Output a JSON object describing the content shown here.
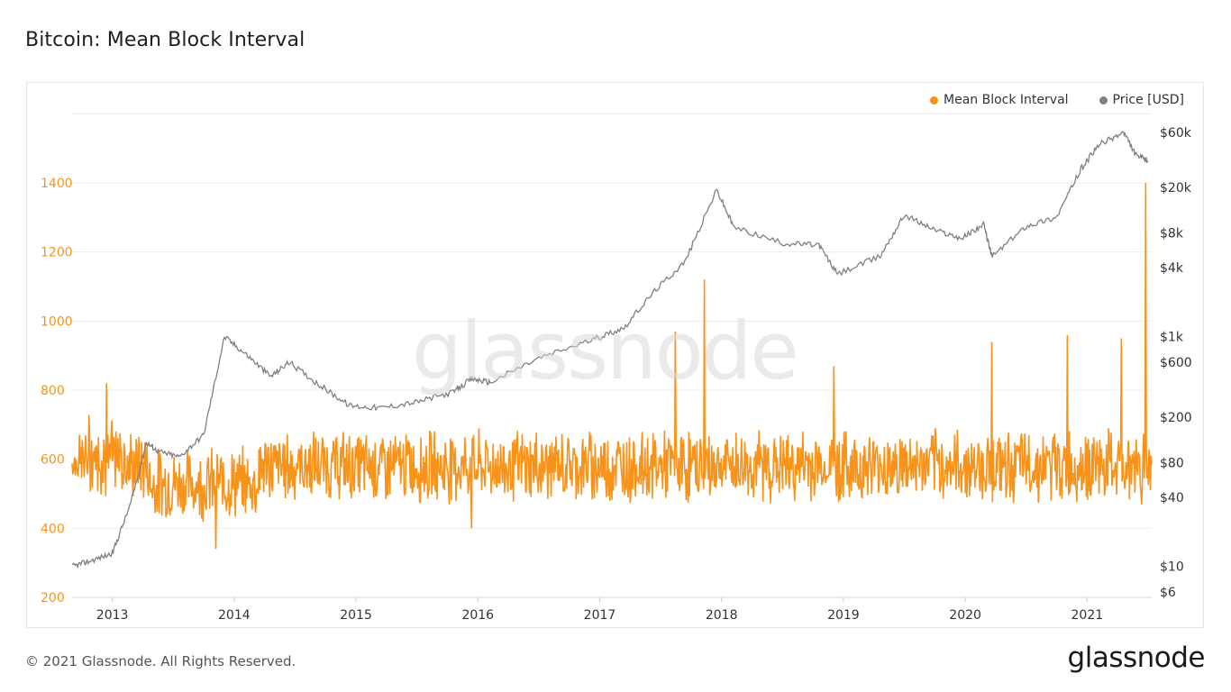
{
  "header": {
    "title": "Bitcoin: Mean Block Interval"
  },
  "legend": [
    {
      "label": "Mean Block Interval",
      "color": "#f7931a"
    },
    {
      "label": "Price [USD]",
      "color": "#808080"
    }
  ],
  "watermark": "glassnode",
  "footer": {
    "copyright": "© 2021 Glassnode. All Rights Reserved.",
    "brand": "glassnode"
  },
  "chart_data": {
    "type": "line",
    "x_ticks": [
      "2013",
      "2014",
      "2015",
      "2016",
      "2017",
      "2018",
      "2019",
      "2020",
      "2021"
    ],
    "left_axis": {
      "ticks": [
        200,
        400,
        600,
        800,
        1000,
        1200,
        1400
      ],
      "range": [
        200,
        1600
      ],
      "color": "#f7931a"
    },
    "right_axis": {
      "ticks": [
        "$6",
        "$10",
        "$40",
        "$80",
        "$200",
        "$600",
        "$1k",
        "$4k",
        "$8k",
        "$20k",
        "$60k"
      ],
      "scale": "log"
    },
    "grid": true,
    "legend_position": "top-right",
    "series": [
      {
        "name": "Mean Block Interval",
        "axis": "left",
        "color": "#f7931a",
        "baseline": 580,
        "spikes": [
          {
            "date": "2012.95",
            "value": 820
          },
          {
            "date": "2013.85",
            "value": 340
          },
          {
            "date": "2015.95",
            "value": 400
          },
          {
            "date": "2017.62",
            "value": 970
          },
          {
            "date": "2017.86",
            "value": 1120
          },
          {
            "date": "2018.92",
            "value": 870
          },
          {
            "date": "2020.22",
            "value": 940
          },
          {
            "date": "2020.84",
            "value": 960
          },
          {
            "date": "2021.28",
            "value": 950
          },
          {
            "date": "2021.48",
            "value": 1400
          }
        ]
      },
      {
        "name": "Price [USD]",
        "axis": "right",
        "color": "#808080",
        "points": [
          [
            "2012.67",
            10
          ],
          [
            "2012.8",
            11
          ],
          [
            "2013.0",
            13
          ],
          [
            "2013.15",
            35
          ],
          [
            "2013.28",
            120
          ],
          [
            "2013.38",
            100
          ],
          [
            "2013.55",
            90
          ],
          [
            "2013.75",
            140
          ],
          [
            "2013.92",
            1000
          ],
          [
            "2014.1",
            700
          ],
          [
            "2014.3",
            450
          ],
          [
            "2014.45",
            600
          ],
          [
            "2014.7",
            380
          ],
          [
            "2014.95",
            250
          ],
          [
            "2015.2",
            240
          ],
          [
            "2015.5",
            270
          ],
          [
            "2015.8",
            330
          ],
          [
            "2015.95",
            430
          ],
          [
            "2016.1",
            400
          ],
          [
            "2016.5",
            650
          ],
          [
            "2016.95",
            950
          ],
          [
            "2017.2",
            1200
          ],
          [
            "2017.45",
            2500
          ],
          [
            "2017.7",
            4500
          ],
          [
            "2017.96",
            19000
          ],
          [
            "2018.1",
            9000
          ],
          [
            "2018.5",
            6500
          ],
          [
            "2018.8",
            6300
          ],
          [
            "2018.95",
            3500
          ],
          [
            "2019.3",
            5000
          ],
          [
            "2019.5",
            11500
          ],
          [
            "2019.75",
            8500
          ],
          [
            "2019.97",
            7200
          ],
          [
            "2020.15",
            9500
          ],
          [
            "2020.22",
            5000
          ],
          [
            "2020.5",
            9200
          ],
          [
            "2020.75",
            11000
          ],
          [
            "2020.95",
            29000
          ],
          [
            "2021.1",
            47000
          ],
          [
            "2021.3",
            60000
          ],
          [
            "2021.4",
            38000
          ],
          [
            "2021.5",
            34000
          ]
        ]
      }
    ]
  }
}
